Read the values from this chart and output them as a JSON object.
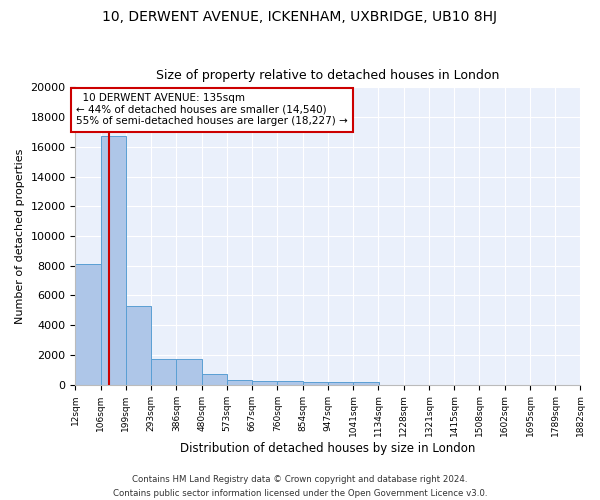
{
  "title1": "10, DERWENT AVENUE, ICKENHAM, UXBRIDGE, UB10 8HJ",
  "title2": "Size of property relative to detached houses in London",
  "xlabel": "Distribution of detached houses by size in London",
  "ylabel": "Number of detached properties",
  "bin_labels": [
    "12sqm",
    "106sqm",
    "199sqm",
    "293sqm",
    "386sqm",
    "480sqm",
    "573sqm",
    "667sqm",
    "760sqm",
    "854sqm",
    "947sqm",
    "1041sqm",
    "1134sqm",
    "1228sqm",
    "1321sqm",
    "1415sqm",
    "1508sqm",
    "1602sqm",
    "1695sqm",
    "1789sqm",
    "1882sqm"
  ],
  "bin_edges": [
    12,
    106,
    199,
    293,
    386,
    480,
    573,
    667,
    760,
    854,
    947,
    1041,
    1134,
    1228,
    1321,
    1415,
    1508,
    1602,
    1695,
    1789,
    1882
  ],
  "bar_heights": [
    8100,
    16700,
    5300,
    1750,
    1750,
    700,
    300,
    250,
    230,
    200,
    180,
    150,
    0,
    0,
    0,
    0,
    0,
    0,
    0,
    0
  ],
  "bar_color": "#aec6e8",
  "bar_edge_color": "#5a9fd4",
  "property_size": 135,
  "property_label": "10 DERWENT AVENUE: 135sqm",
  "pct_smaller": 44,
  "count_smaller": 14540,
  "pct_larger": 55,
  "count_larger": 18227,
  "vline_color": "#cc0000",
  "annotation_box_color": "#cc0000",
  "background_color": "#eaf0fb",
  "fig_background_color": "#ffffff",
  "grid_color": "#ffffff",
  "footer1": "Contains HM Land Registry data © Crown copyright and database right 2024.",
  "footer2": "Contains public sector information licensed under the Open Government Licence v3.0.",
  "ylim": [
    0,
    20000
  ],
  "yticks": [
    0,
    2000,
    4000,
    6000,
    8000,
    10000,
    12000,
    14000,
    16000,
    18000,
    20000
  ]
}
